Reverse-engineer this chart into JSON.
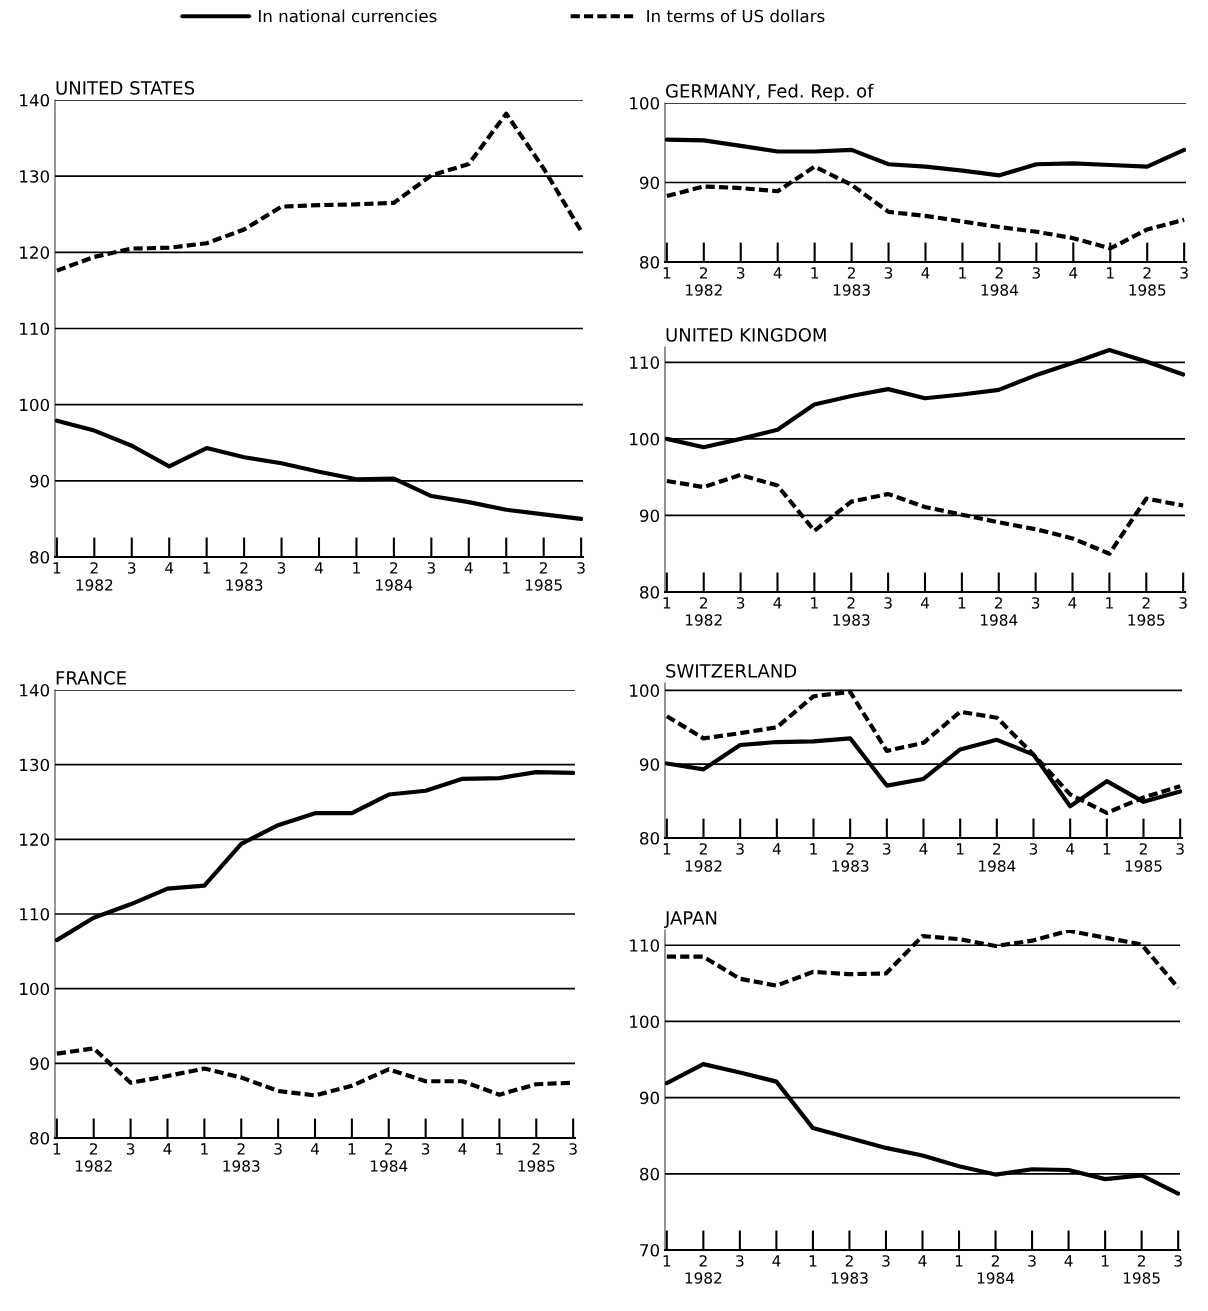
{
  "chart_data": [
    {
      "type": "line",
      "title": "UNITED STATES",
      "legend": "top",
      "grid": "y",
      "marker": "none",
      "categories": [
        "1",
        "2\n1982",
        "3",
        "4",
        "1",
        "2\n1983",
        "3",
        "4",
        "1",
        "2\n1984",
        "3",
        "4",
        "1",
        "2\n1985",
        "3"
      ],
      "ylim": [
        80,
        140
      ],
      "yticks": [
        80,
        90,
        100,
        110,
        120,
        130,
        140
      ],
      "series": [
        {
          "name": "In national currencies",
          "color": "#000000",
          "line_style": "solid",
          "values": [
            97.9,
            96.6,
            94.6,
            91.9,
            94.3,
            93.1,
            92.3,
            91.2,
            90.2,
            90.3,
            88.0,
            87.2,
            86.2,
            85.6,
            85.0
          ]
        },
        {
          "name": "In terms of US dollars",
          "color": "#000000",
          "line_style": "dashed",
          "values": [
            117.6,
            119.4,
            120.5,
            120.6,
            121.2,
            123.0,
            126.0,
            126.2,
            126.3,
            126.5,
            130.1,
            131.6,
            138.2,
            131.0,
            122.8
          ]
        }
      ]
    },
    {
      "type": "line",
      "title": "FRANCE",
      "grid": "y",
      "marker": "none",
      "categories": [
        "1",
        "2\n1982",
        "3",
        "4",
        "1",
        "2\n1983",
        "3",
        "4",
        "1",
        "2\n1984",
        "3",
        "4",
        "1",
        "2\n1985",
        "3"
      ],
      "ylim": [
        80,
        140
      ],
      "yticks": [
        80,
        90,
        100,
        110,
        120,
        130,
        140
      ],
      "series": [
        {
          "color": "#000000",
          "line_style": "solid",
          "values": [
            106.5,
            109.5,
            111.3,
            113.4,
            113.8,
            119.4,
            121.9,
            123.5,
            123.5,
            126.0,
            126.5,
            128.1,
            128.2,
            129.0,
            128.9
          ]
        },
        {
          "color": "#000000",
          "line_style": "dashed",
          "values": [
            91.3,
            92.0,
            87.4,
            88.3,
            89.3,
            88.1,
            86.3,
            85.7,
            87.0,
            89.2,
            87.6,
            87.6,
            85.8,
            87.2,
            87.4
          ]
        }
      ]
    },
    {
      "type": "line",
      "title": "GERMANY, Fed. Rep. of",
      "grid": "y",
      "marker": "none",
      "categories": [
        "1",
        "2\n1982",
        "3",
        "4",
        "1",
        "2\n1983",
        "3",
        "4",
        "1",
        "2\n1984",
        "3",
        "4",
        "1",
        "2\n1985",
        "3"
      ],
      "ylim": [
        80,
        100
      ],
      "yticks": [
        80,
        90,
        100
      ],
      "series": [
        {
          "color": "#000000",
          "line_style": "solid",
          "values": [
            95.4,
            95.3,
            94.6,
            93.9,
            93.9,
            94.1,
            92.3,
            92.0,
            91.5,
            90.9,
            92.3,
            92.4,
            92.2,
            92.0,
            94.1
          ]
        },
        {
          "color": "#000000",
          "line_style": "dashed",
          "values": [
            88.3,
            89.5,
            89.3,
            88.9,
            92.0,
            89.7,
            86.3,
            85.8,
            85.1,
            84.4,
            83.8,
            83.0,
            81.7,
            84.1,
            85.3
          ]
        }
      ]
    },
    {
      "type": "line",
      "title": "UNITED KINGDOM",
      "grid": "y",
      "marker": "none",
      "categories": [
        "1",
        "2\n1982",
        "3",
        "4",
        "1",
        "2\n1983",
        "3",
        "4",
        "1",
        "2\n1984",
        "3",
        "4",
        "1",
        "2\n1985",
        "3"
      ],
      "ylim": [
        80,
        112
      ],
      "yticks": [
        80,
        90,
        100,
        110
      ],
      "series": [
        {
          "color": "#000000",
          "line_style": "solid",
          "values": [
            100.0,
            98.9,
            100.0,
            101.2,
            104.5,
            105.6,
            106.5,
            105.3,
            105.8,
            106.4,
            108.3,
            109.9,
            111.6,
            110.1,
            108.4
          ]
        },
        {
          "color": "#000000",
          "line_style": "dashed",
          "values": [
            94.5,
            93.7,
            95.3,
            93.9,
            88.0,
            91.8,
            92.8,
            91.1,
            90.1,
            89.1,
            88.2,
            87.0,
            85.0,
            92.2,
            91.3
          ]
        }
      ]
    },
    {
      "type": "line",
      "title": "SWITZERLAND",
      "grid": "y",
      "marker": "none",
      "categories": [
        "1",
        "2\n1982",
        "3",
        "4",
        "1",
        "2\n1983",
        "3",
        "4",
        "1",
        "2\n1984",
        "3",
        "4",
        "1",
        "2\n1985",
        "3"
      ],
      "ylim": [
        80,
        101
      ],
      "yticks": [
        80,
        90,
        100
      ],
      "series": [
        {
          "color": "#000000",
          "line_style": "solid",
          "values": [
            90.1,
            89.3,
            92.6,
            93.0,
            93.1,
            93.5,
            87.1,
            88.0,
            92.0,
            93.3,
            91.3,
            84.3,
            87.7,
            84.9,
            86.3
          ]
        },
        {
          "color": "#000000",
          "line_style": "dashed",
          "values": [
            96.5,
            93.5,
            94.2,
            95.0,
            99.2,
            99.8,
            91.8,
            92.9,
            97.1,
            96.3,
            91.3,
            85.9,
            83.4,
            85.5,
            87.0
          ]
        }
      ]
    },
    {
      "type": "line",
      "title": "JAPAN",
      "grid": "y",
      "marker": "none",
      "categories": [
        "1",
        "2\n1982",
        "3",
        "4",
        "1",
        "2\n1983",
        "3",
        "4",
        "1",
        "2\n1984",
        "3",
        "4",
        "1",
        "2\n1985",
        "3"
      ],
      "ylim": [
        70,
        112
      ],
      "yticks": [
        70,
        80,
        90,
        100,
        110
      ],
      "series": [
        {
          "color": "#000000",
          "line_style": "solid",
          "values": [
            91.9,
            94.4,
            93.3,
            92.1,
            86.0,
            84.7,
            83.4,
            82.4,
            81.0,
            79.9,
            80.6,
            80.5,
            79.3,
            79.8,
            77.4
          ]
        },
        {
          "color": "#000000",
          "line_style": "dashed",
          "values": [
            108.5,
            108.5,
            105.6,
            104.7,
            106.5,
            106.2,
            106.3,
            111.2,
            110.8,
            109.9,
            110.6,
            111.9,
            111.0,
            110.1,
            104.4
          ]
        }
      ]
    }
  ]
}
